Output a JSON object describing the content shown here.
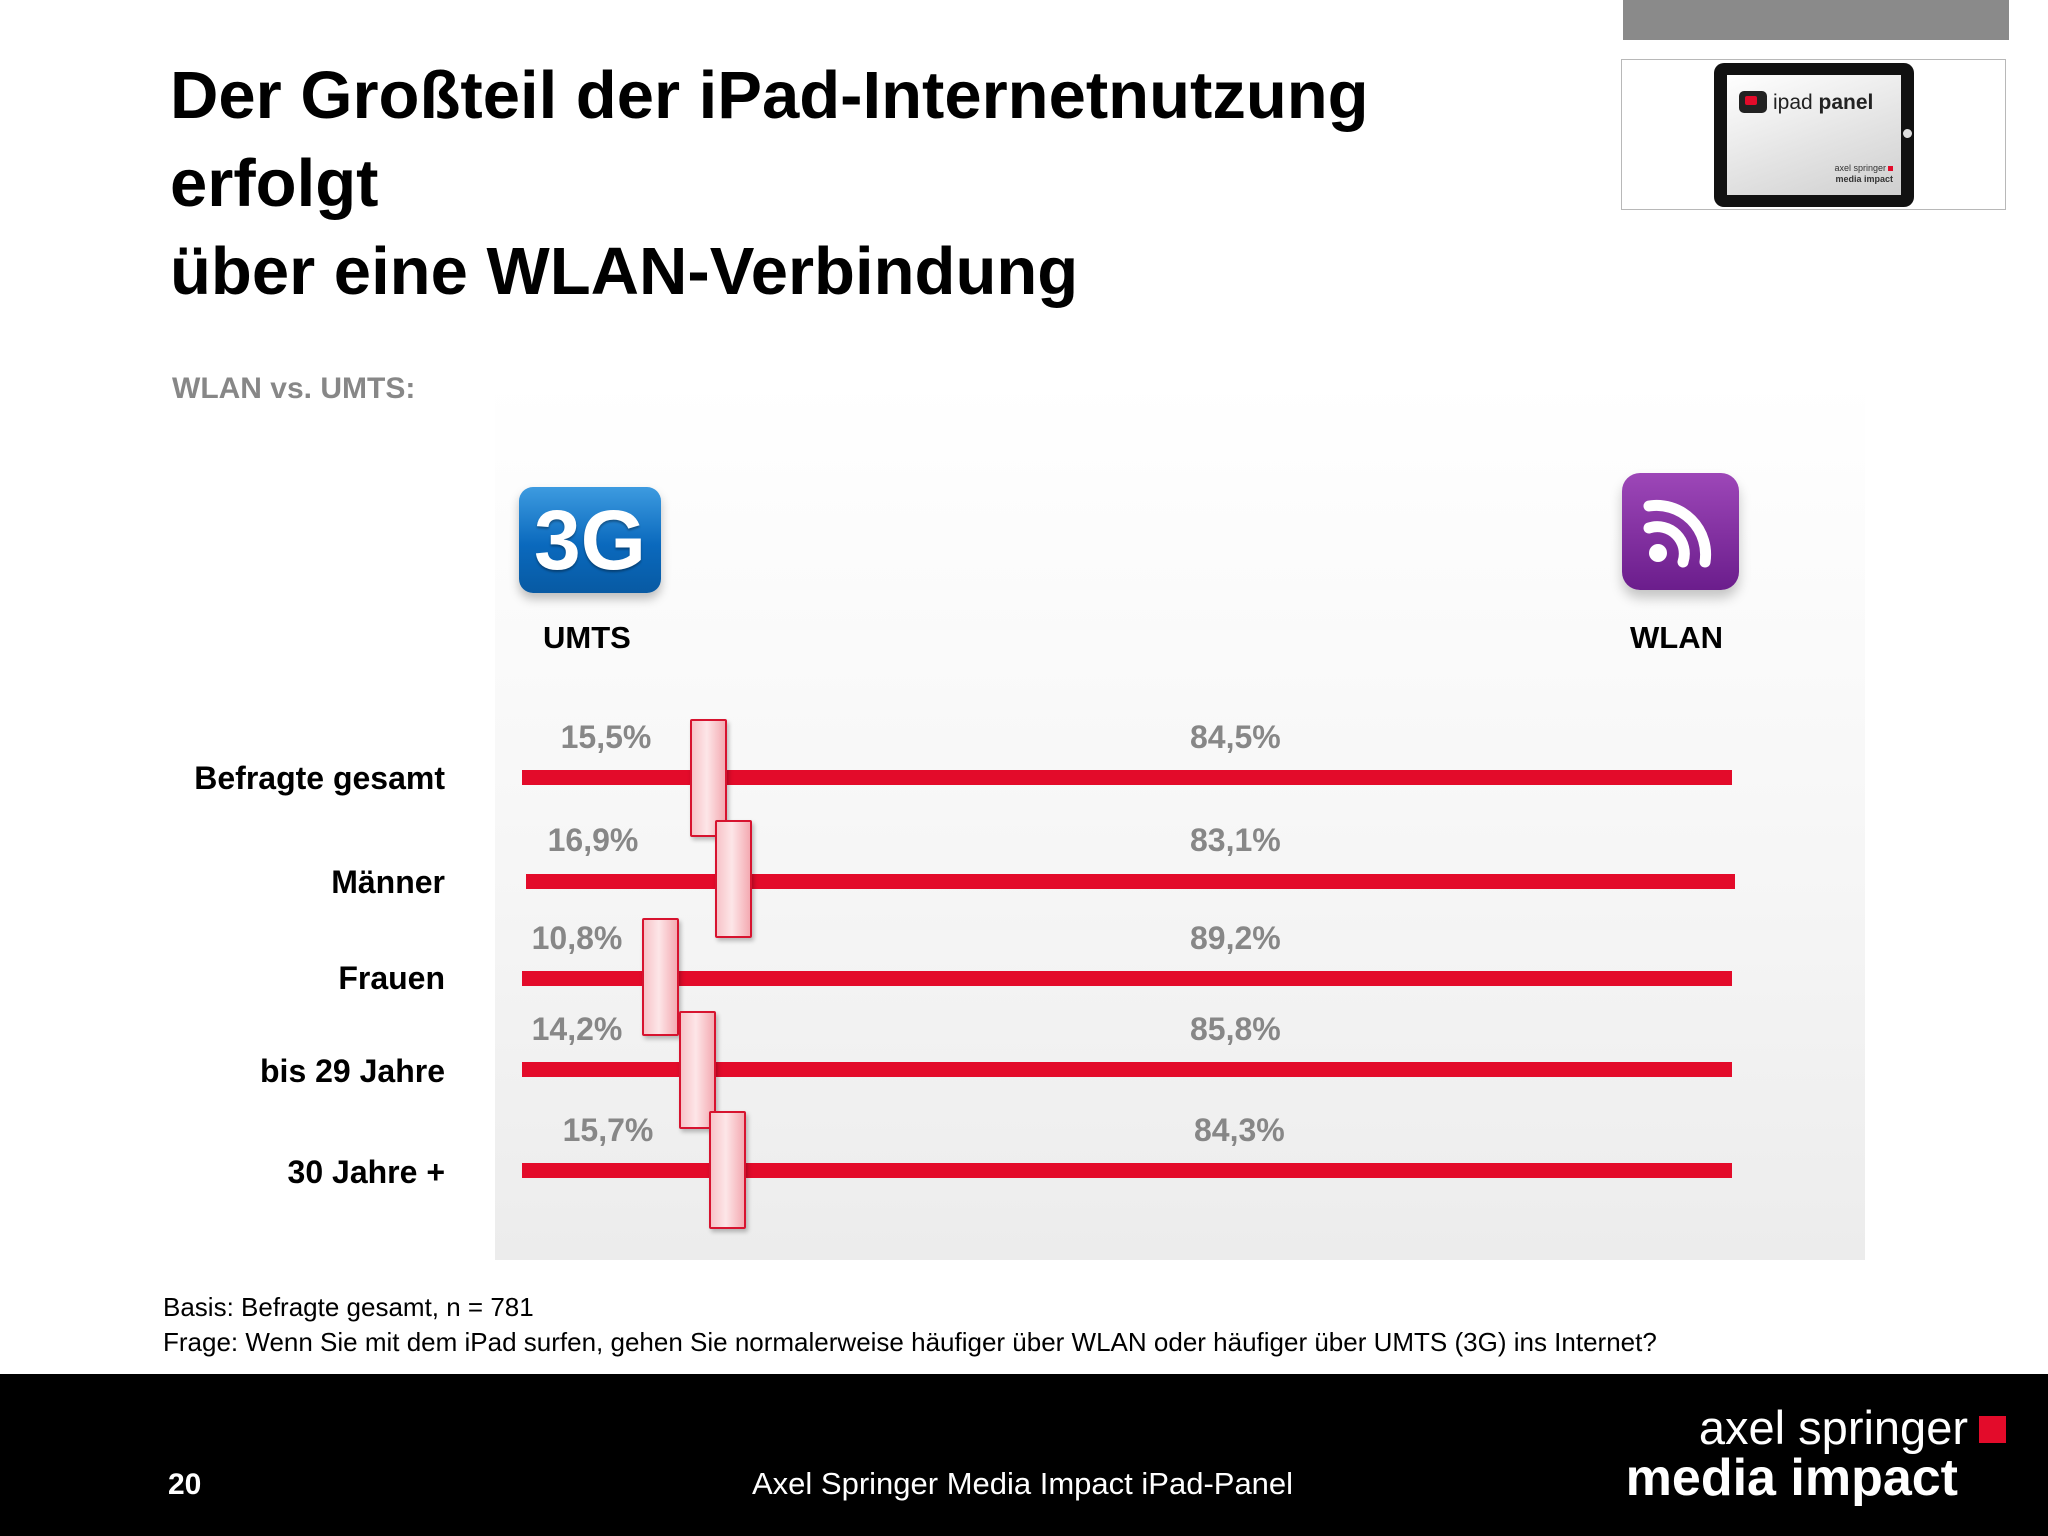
{
  "slide": {
    "title_lines": [
      "Der Großteil der iPad-Internetnutzung",
      "erfolgt",
      "über eine WLAN-Verbindung"
    ],
    "subtitle": "WLAN vs. UMTS:"
  },
  "logo": {
    "app_name_light": "ipad ",
    "app_name_bold": "panel",
    "brand_line1": "axel springer",
    "brand_line2": "media impact"
  },
  "icons": {
    "umts": {
      "icon": "3g-icon",
      "text": "3G",
      "label": "UMTS",
      "color": "#0a69bd"
    },
    "wlan": {
      "icon": "wifi-icon",
      "label": "WLAN",
      "color": "#7b2a9e"
    }
  },
  "chart_data": {
    "type": "bar",
    "categories": [
      "Befragte gesamt",
      "Männer",
      "Frauen",
      "bis 29 Jahre",
      "30 Jahre +"
    ],
    "series": [
      {
        "name": "UMTS",
        "values": [
          15.5,
          16.9,
          10.8,
          14.2,
          15.7
        ],
        "labels": [
          "15,5%",
          "16,9%",
          "10,8%",
          "14,2%",
          "15,7%"
        ]
      },
      {
        "name": "WLAN",
        "values": [
          84.5,
          83.1,
          89.2,
          85.8,
          84.3
        ],
        "labels": [
          "84,5%",
          "83,1%",
          "89,2%",
          "85,8%",
          "84,3%"
        ]
      }
    ],
    "ylim": [
      0,
      100
    ],
    "bar_color": "#e30b2a",
    "label_color": "#878787"
  },
  "notes": {
    "basis": "Basis: Befragte gesamt, n = 781",
    "question": "Frage: Wenn Sie mit dem iPad surfen, gehen Sie normalerweise häufiger über WLAN oder häufiger über UMTS (3G) ins Internet?"
  },
  "footer": {
    "page_number": "20",
    "title": "Axel Springer Media Impact iPad-Panel",
    "brand_line1": "axel springer",
    "brand_line2": "media impact",
    "brand_color": "#e30b2a"
  }
}
